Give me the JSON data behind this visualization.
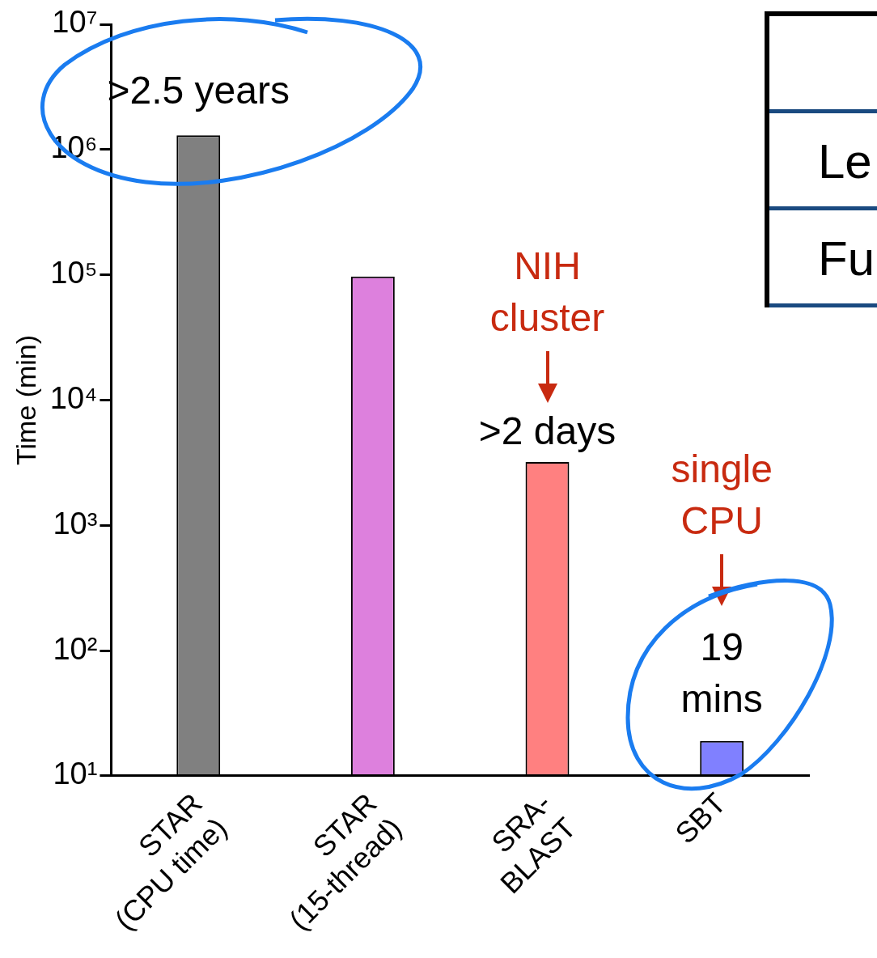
{
  "chart_data": {
    "type": "bar",
    "ylabel": "Time (min)",
    "categories": [
      "STAR\n(CPU time)",
      "STAR\n(15-thread)",
      "SRA-\nBLAST",
      "SBT"
    ],
    "values": [
      1300000,
      97000,
      3200,
      19
    ],
    "colors": [
      "#808080",
      "#dd80dd",
      "#ff8080",
      "#8080ff"
    ],
    "log": true,
    "ylim": [
      10,
      10000000
    ],
    "yticks": [
      {
        "value": 10,
        "label": "10¹"
      },
      {
        "value": 100,
        "label": "10²"
      },
      {
        "value": 1000,
        "label": "10³"
      },
      {
        "value": 10000,
        "label": "10⁴"
      },
      {
        "value": 100000,
        "label": "10⁵"
      },
      {
        "value": 1000000,
        "label": "10⁶"
      },
      {
        "value": 10000000,
        "label": "10⁷"
      }
    ],
    "annotations": [
      ">2.5 years",
      "NIH\ncluster",
      ">2 days",
      "single\nCPU",
      "19\nmins",
      "Le",
      "Ful"
    ]
  }
}
